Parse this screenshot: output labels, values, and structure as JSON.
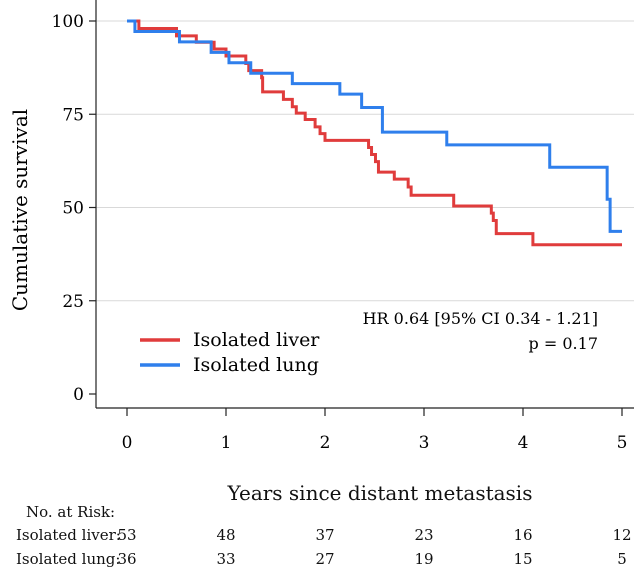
{
  "chart_data": {
    "type": "line",
    "subtype": "kaplan-meier",
    "xlabel": "Years since distant metastasis",
    "ylabel": "Cumulative survival",
    "xlim": [
      0,
      5
    ],
    "ylim": [
      0,
      100
    ],
    "xticks": [
      0,
      1,
      2,
      3,
      4,
      5
    ],
    "yticks": [
      0,
      25,
      50,
      75,
      100
    ],
    "grid": "horizontal",
    "legend_position": "bottom-left",
    "annotation_hr": "HR 0.64 [95% CI 0.34 - 1.21]",
    "annotation_p": "p = 0.17",
    "series": [
      {
        "name": "Isolated liver",
        "color": "#e03c3c",
        "steps": [
          [
            0,
            100
          ],
          [
            0.12,
            98
          ],
          [
            0.5,
            96
          ],
          [
            0.7,
            94.3
          ],
          [
            0.88,
            92.5
          ],
          [
            1.0,
            90.6
          ],
          [
            1.2,
            88.6
          ],
          [
            1.23,
            86.7
          ],
          [
            1.36,
            84.8
          ],
          [
            1.37,
            81
          ],
          [
            1.58,
            79
          ],
          [
            1.67,
            77
          ],
          [
            1.71,
            75.3
          ],
          [
            1.8,
            73.6
          ],
          [
            1.9,
            71.6
          ],
          [
            1.95,
            69.8
          ],
          [
            2.0,
            68
          ],
          [
            2.44,
            66.1
          ],
          [
            2.47,
            64.2
          ],
          [
            2.51,
            62.3
          ],
          [
            2.54,
            59.5
          ],
          [
            2.7,
            57.6
          ],
          [
            2.84,
            55.5
          ],
          [
            2.87,
            53.3
          ],
          [
            3.3,
            50.4
          ],
          [
            3.68,
            48.5
          ],
          [
            3.7,
            46.5
          ],
          [
            3.73,
            43
          ],
          [
            4.1,
            40
          ],
          [
            5.0,
            40
          ]
        ]
      },
      {
        "name": "Isolated lung",
        "color": "#2f7fec",
        "steps": [
          [
            0,
            100
          ],
          [
            0.08,
            97.2
          ],
          [
            0.53,
            94.4
          ],
          [
            0.85,
            91.6
          ],
          [
            1.03,
            88.8
          ],
          [
            1.25,
            86
          ],
          [
            1.67,
            83.2
          ],
          [
            2.15,
            80.4
          ],
          [
            2.37,
            76.8
          ],
          [
            2.58,
            70.2
          ],
          [
            3.23,
            66.8
          ],
          [
            4.27,
            60.8
          ],
          [
            4.85,
            52.2
          ],
          [
            4.88,
            43.6
          ],
          [
            5.0,
            43.6
          ]
        ]
      }
    ],
    "risk_table": {
      "title": "No. at Risk:",
      "rows": [
        {
          "label": "Isolated liver:",
          "values": [
            "53",
            "48",
            "37",
            "23",
            "16",
            "12"
          ]
        },
        {
          "label": "Isolated lung:",
          "values": [
            "36",
            "33",
            "27",
            "19",
            "15",
            "5"
          ]
        }
      ]
    }
  }
}
